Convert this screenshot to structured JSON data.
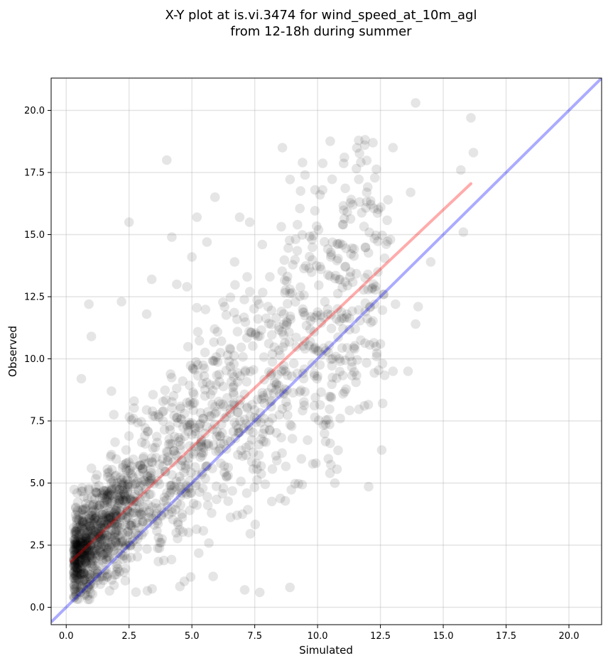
{
  "chart_data": {
    "type": "scatter",
    "title_line1": "X-Y plot at is.vi.3474 for wind_speed_at_10m_agl",
    "title_line2": "from 12-18h during summer",
    "xlabel": "Simulated",
    "ylabel": "Observed",
    "xlim": [
      -0.6,
      21.3
    ],
    "ylim": [
      -0.7,
      21.3
    ],
    "xticks": [
      0.0,
      2.5,
      5.0,
      7.5,
      10.0,
      12.5,
      15.0,
      17.5,
      20.0
    ],
    "xtick_labels": [
      "0.0",
      "2.5",
      "5.0",
      "7.5",
      "10.0",
      "12.5",
      "15.0",
      "17.5",
      "20.0"
    ],
    "yticks": [
      0.0,
      2.5,
      5.0,
      7.5,
      10.0,
      12.5,
      15.0,
      17.5,
      20.0
    ],
    "ytick_labels": [
      "0.0",
      "2.5",
      "5.0",
      "7.5",
      "10.0",
      "12.5",
      "15.0",
      "17.5",
      "20.0"
    ],
    "grid": true,
    "point_color": "#000000",
    "point_opacity": 0.1,
    "identity_line": {
      "color": "#0000ff",
      "opacity": 0.33,
      "x": [
        -0.6,
        21.3
      ],
      "y": [
        -0.6,
        21.3
      ]
    },
    "fit_line": {
      "color": "#ff0000",
      "opacity": 0.33,
      "x": [
        0.2,
        16.1
      ],
      "y": [
        1.85,
        17.05
      ]
    },
    "cluster_params": {
      "seed": 3474,
      "count": 1650
    },
    "points": [
      [
        0.9,
        12.2
      ],
      [
        1.0,
        10.9
      ],
      [
        2.5,
        15.5
      ],
      [
        4.0,
        18.0
      ],
      [
        8.6,
        18.5
      ],
      [
        13.9,
        20.3
      ],
      [
        16.1,
        19.7
      ],
      [
        16.2,
        18.3
      ],
      [
        15.7,
        17.6
      ],
      [
        12.2,
        18.7
      ],
      [
        13.0,
        18.5
      ],
      [
        15.8,
        15.1
      ],
      [
        13.0,
        9.5
      ],
      [
        13.6,
        9.5
      ],
      [
        12.5,
        10.6
      ],
      [
        14.5,
        13.9
      ],
      [
        13.9,
        11.4
      ],
      [
        14.0,
        12.1
      ],
      [
        10.5,
        6.6
      ],
      [
        8.9,
        0.8
      ],
      [
        7.7,
        0.6
      ],
      [
        7.1,
        0.7
      ],
      [
        10.0,
        9.3
      ],
      [
        0.6,
        9.2
      ],
      [
        5.2,
        15.7
      ],
      [
        6.9,
        15.7
      ],
      [
        9.4,
        17.9
      ],
      [
        9.5,
        17.4
      ],
      [
        11.4,
        16.2
      ],
      [
        12.8,
        16.4
      ],
      [
        13.7,
        16.7
      ],
      [
        7.3,
        15.5
      ],
      [
        4.2,
        14.9
      ],
      [
        5.6,
        14.7
      ],
      [
        2.7,
        8.3
      ],
      [
        1.8,
        8.7
      ],
      [
        3.4,
        13.2
      ],
      [
        4.8,
        12.9
      ],
      [
        6.7,
        13.9
      ],
      [
        8.1,
        13.3
      ],
      [
        11.1,
        13.7
      ],
      [
        12.4,
        13.5
      ],
      [
        9.9,
        16.8
      ],
      [
        10.2,
        16.8
      ],
      [
        11.0,
        15.4
      ],
      [
        12.9,
        14.8
      ],
      [
        13.1,
        12.2
      ],
      [
        12.0,
        13.4
      ],
      [
        8.9,
        12.8
      ],
      [
        10.4,
        11.8
      ],
      [
        11.5,
        11.2
      ],
      [
        12.1,
        12.1
      ],
      [
        9.5,
        10.4
      ],
      [
        10.9,
        9.9
      ],
      [
        2.2,
        12.3
      ],
      [
        3.2,
        11.8
      ],
      [
        4.4,
        13.0
      ],
      [
        5.0,
        14.1
      ],
      [
        6.3,
        12.1
      ],
      [
        7.8,
        14.6
      ],
      [
        1.2,
        1.2
      ],
      [
        1.4,
        2.2
      ],
      [
        0.8,
        0.7
      ],
      [
        1.6,
        1.9
      ],
      [
        2.0,
        2.6
      ],
      [
        2.6,
        3.4
      ]
    ]
  }
}
